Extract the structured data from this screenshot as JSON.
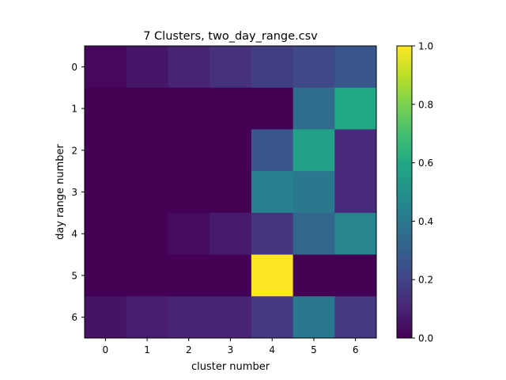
{
  "chart_data": {
    "type": "heatmap",
    "title": "7 Clusters, two_day_range.csv",
    "xlabel": "cluster number",
    "ylabel": "day range number",
    "x_ticks": [
      "0",
      "1",
      "2",
      "3",
      "4",
      "5",
      "6"
    ],
    "y_ticks": [
      "0",
      "1",
      "2",
      "3",
      "4",
      "5",
      "6"
    ],
    "colormap": "viridis",
    "vmin": 0.0,
    "vmax": 1.0,
    "colorbar_ticks": [
      "0.0",
      "0.2",
      "0.4",
      "0.6",
      "0.8",
      "1.0"
    ],
    "values": [
      [
        0.02,
        0.06,
        0.1,
        0.14,
        0.18,
        0.22,
        0.27
      ],
      [
        0.0,
        0.0,
        0.0,
        0.0,
        0.0,
        0.35,
        0.6
      ],
      [
        0.0,
        0.0,
        0.0,
        0.0,
        0.27,
        0.57,
        0.12
      ],
      [
        0.0,
        0.0,
        0.0,
        0.0,
        0.43,
        0.4,
        0.12
      ],
      [
        0.0,
        0.0,
        0.03,
        0.07,
        0.15,
        0.33,
        0.45
      ],
      [
        0.0,
        0.0,
        0.0,
        0.0,
        1.0,
        0.0,
        0.0
      ],
      [
        0.05,
        0.08,
        0.1,
        0.1,
        0.17,
        0.4,
        0.17
      ]
    ]
  }
}
